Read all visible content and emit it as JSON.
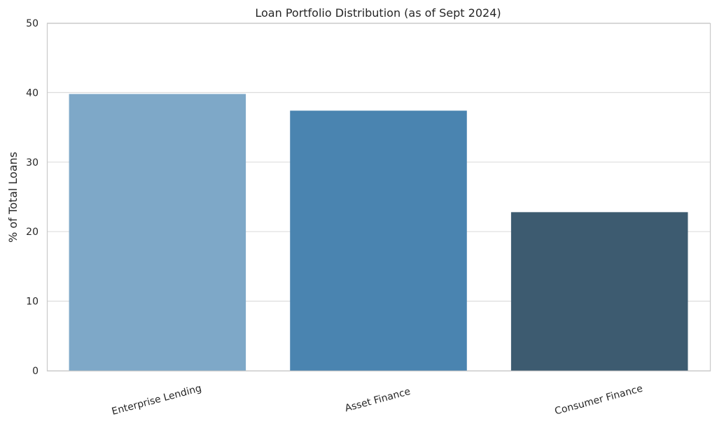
{
  "chart_data": {
    "type": "bar",
    "title": "Loan Portfolio Distribution (as of Sept 2024)",
    "xlabel": "",
    "ylabel": "% of Total Loans",
    "categories": [
      "Enterprise Lending",
      "Asset Finance",
      "Consumer Finance"
    ],
    "values": [
      39.8,
      37.4,
      22.8
    ],
    "colors": [
      "#7ea8c8",
      "#4a84b0",
      "#3d5b70"
    ],
    "ylim": [
      0,
      50
    ],
    "yticks": [
      "0",
      "10",
      "20",
      "30",
      "40",
      "50"
    ],
    "grid": true,
    "legend": "none"
  }
}
